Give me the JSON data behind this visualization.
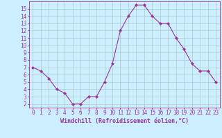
{
  "hours": [
    0,
    1,
    2,
    3,
    4,
    5,
    6,
    7,
    8,
    9,
    10,
    11,
    12,
    13,
    14,
    15,
    16,
    17,
    18,
    19,
    20,
    21,
    22,
    23
  ],
  "values": [
    7.0,
    6.5,
    5.5,
    4.0,
    3.5,
    2.0,
    2.0,
    3.0,
    3.0,
    5.0,
    7.5,
    12.0,
    14.0,
    15.5,
    15.5,
    14.0,
    13.0,
    13.0,
    11.0,
    9.5,
    7.5,
    6.5,
    6.5,
    5.0
  ],
  "line_color": "#993399",
  "marker": "D",
  "marker_size": 2,
  "xlabel": "Windchill (Refroidissement éolien,°C)",
  "bg_color": "#cceeff",
  "grid_color": "#aacccc",
  "xlim": [
    -0.5,
    23.5
  ],
  "ylim": [
    1.5,
    16.0
  ],
  "yticks": [
    2,
    3,
    4,
    5,
    6,
    7,
    8,
    9,
    10,
    11,
    12,
    13,
    14,
    15
  ],
  "xticks": [
    0,
    1,
    2,
    3,
    4,
    5,
    6,
    7,
    8,
    9,
    10,
    11,
    12,
    13,
    14,
    15,
    16,
    17,
    18,
    19,
    20,
    21,
    22,
    23
  ],
  "tick_color": "#993399",
  "label_fontsize": 6,
  "tick_fontsize": 5.5
}
